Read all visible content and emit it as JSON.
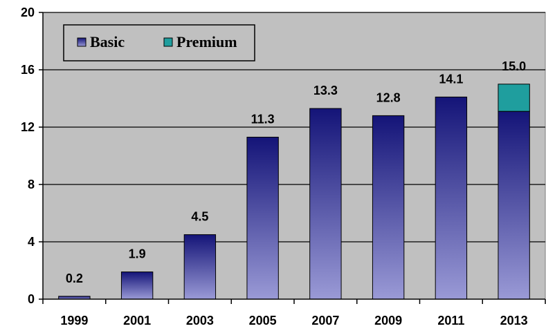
{
  "chart_data": {
    "type": "bar",
    "stacked": true,
    "categories": [
      "1999",
      "2001",
      "2003",
      "2005",
      "2007",
      "2009",
      "2011",
      "2013"
    ],
    "series": [
      {
        "name": "Basic",
        "values": [
          0.2,
          1.9,
          4.5,
          11.3,
          13.3,
          12.8,
          14.1,
          13.1
        ]
      },
      {
        "name": "Premium",
        "values": [
          0,
          0,
          0,
          0,
          0,
          0,
          0,
          1.9
        ]
      }
    ],
    "data_labels": [
      "0.2",
      "1.9",
      "4.5",
      "11.3",
      "13.3",
      "12.8",
      "14.1",
      "15.0"
    ],
    "yticks": [
      0,
      4,
      8,
      12,
      16,
      20
    ],
    "ylim": [
      0,
      20
    ],
    "grid": true,
    "legend_position": "top-left",
    "colors": {
      "plot_background": "#c0c0c0",
      "basic_top": "#141478",
      "basic_bottom": "#9a9ad6",
      "premium": "#1f9e9e"
    }
  }
}
